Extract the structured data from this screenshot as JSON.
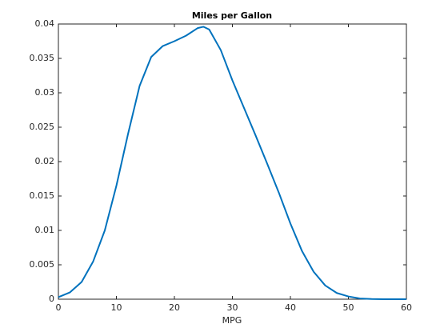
{
  "chart_data": {
    "type": "line",
    "title": "Miles per Gallon",
    "xlabel": "MPG",
    "x": [
      0,
      2,
      4,
      6,
      8,
      10,
      12,
      14,
      16,
      18,
      20,
      22,
      24,
      25,
      26,
      28,
      30,
      32,
      34,
      36,
      38,
      40,
      42,
      44,
      46,
      48,
      50,
      52,
      54,
      56,
      58,
      60
    ],
    "series": [
      {
        "color": "#0072bd",
        "values": [
          0.0003,
          0.001,
          0.0025,
          0.0055,
          0.01,
          0.0165,
          0.024,
          0.031,
          0.0352,
          0.0368,
          0.0375,
          0.0383,
          0.0394,
          0.0396,
          0.0392,
          0.0362,
          0.0318,
          0.0278,
          0.0238,
          0.0197,
          0.0155,
          0.011,
          0.007,
          0.004,
          0.002,
          0.0009,
          0.0004,
          0.0001,
          3e-05,
          0,
          0,
          0
        ]
      }
    ],
    "xlim": [
      0,
      60
    ],
    "xticks": [
      0,
      10,
      20,
      30,
      40,
      50,
      60
    ],
    "ylim": [
      0,
      0.04
    ],
    "yticks": [
      0,
      0.005,
      0.01,
      0.015,
      0.02,
      0.025,
      0.03,
      0.035,
      0.04
    ]
  }
}
